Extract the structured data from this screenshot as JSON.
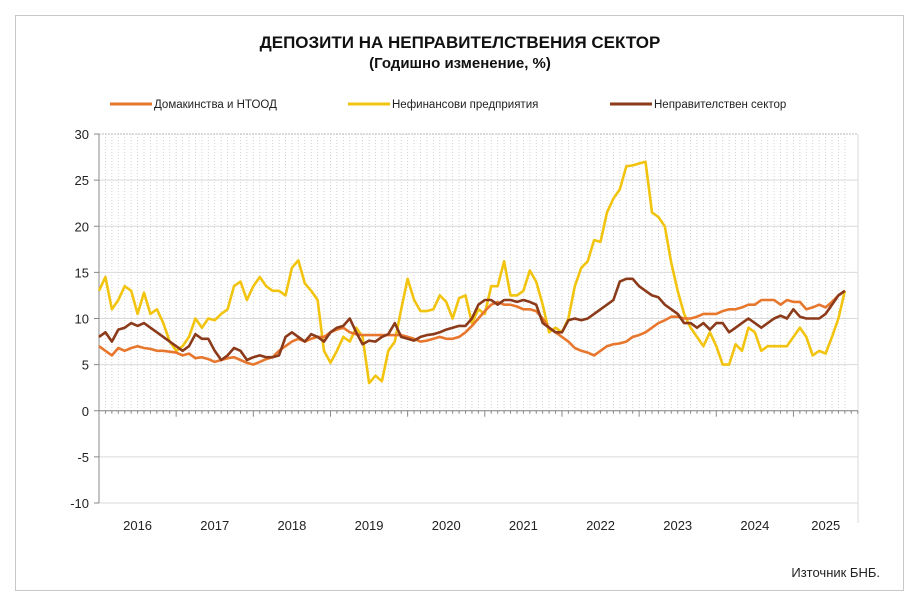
{
  "chart_data": {
    "type": "line",
    "title": "ДЕПОЗИТИ НА НЕПРАВИТЕЛСТВЕНИЯ СЕКТОР",
    "subtitle": "(Годишно изменение, %)",
    "xlabel": "",
    "ylabel": "",
    "ylim": [
      -10,
      30
    ],
    "yticks": [
      "30",
      "25",
      "20",
      "15",
      "10",
      "5",
      "0",
      "-5",
      "-10"
    ],
    "ytick_values": [
      30,
      25,
      20,
      15,
      10,
      5,
      0,
      -5,
      -10
    ],
    "years": [
      "2016",
      "2017",
      "2018",
      "2019",
      "2020",
      "2021",
      "2022",
      "2023",
      "2024",
      "2025"
    ],
    "months_per_year": 12,
    "grid": true,
    "legend_position": "top",
    "source": "Източник БНБ.",
    "series": [
      {
        "name": "Домакинства и НТООД",
        "color": "#e8772e",
        "values": [
          7,
          6.5,
          6,
          6.8,
          6.5,
          6.8,
          7,
          6.8,
          6.7,
          6.5,
          6.5,
          6.4,
          6.3,
          6,
          6.2,
          5.7,
          5.8,
          5.6,
          5.3,
          5.5,
          5.7,
          5.8,
          5.5,
          5.2,
          5,
          5.3,
          5.6,
          5.8,
          6.5,
          7,
          7.5,
          7.8,
          7.5,
          7.8,
          8,
          8,
          8.5,
          8.8,
          9,
          8.5,
          8.3,
          8.2,
          8.2,
          8.2,
          8.2,
          8.2,
          8.2,
          8.2,
          8,
          7.8,
          7.5,
          7.6,
          7.8,
          8,
          7.8,
          7.8,
          8,
          8.5,
          9.2,
          10,
          10.8,
          11.5,
          11.8,
          11.5,
          11.5,
          11.3,
          11,
          11,
          10.8,
          10,
          9,
          8.5,
          8,
          7.5,
          6.8,
          6.5,
          6.3,
          6,
          6.5,
          7,
          7.2,
          7.3,
          7.5,
          8,
          8.2,
          8.5,
          9,
          9.5,
          9.8,
          10.2,
          10.2,
          10,
          10,
          10.2,
          10.5,
          10.5,
          10.5,
          10.8,
          11,
          11,
          11.2,
          11.5,
          11.5,
          12,
          12,
          12,
          11.5,
          12,
          11.8,
          11.8,
          11,
          11.2,
          11.5,
          11.2,
          11.8,
          12.5,
          13
        ]
      },
      {
        "name": "Нефинансови предприятия",
        "color": "#f2c40f",
        "values": [
          13,
          14.5,
          11,
          12,
          13.5,
          13,
          10.5,
          12.8,
          10.5,
          11,
          9.5,
          7.5,
          6.5,
          7,
          8,
          10,
          9,
          10,
          9.8,
          10.5,
          11,
          13.5,
          14,
          12,
          13.5,
          14.5,
          13.5,
          13,
          13,
          12.5,
          15.5,
          16.3,
          13.8,
          13,
          12,
          6.5,
          5.2,
          6.5,
          8,
          7.5,
          9,
          8,
          3,
          3.8,
          3.2,
          6.5,
          7.5,
          11,
          14.3,
          12,
          10.8,
          10.8,
          11,
          12.5,
          11.8,
          10,
          12.2,
          12.5,
          9.5,
          11,
          10.5,
          13.5,
          13.5,
          16.2,
          12.5,
          12.5,
          13,
          15.2,
          14,
          11.5,
          8.5,
          9,
          8.5,
          10,
          13.5,
          15.5,
          16.2,
          18.5,
          18.3,
          21.5,
          23,
          24,
          26.5,
          26.6,
          26.8,
          27,
          21.5,
          21,
          20,
          16,
          13,
          10.5,
          9,
          8,
          7,
          8.5,
          7,
          5,
          5,
          7.2,
          6.5,
          9,
          8.5,
          6.5,
          7,
          7,
          7,
          7,
          8,
          9,
          8,
          6,
          6.5,
          6.2,
          8,
          10,
          13
        ]
      },
      {
        "name": "Неправителствен сектор",
        "color": "#8b3a1a",
        "values": [
          8,
          8.5,
          7.5,
          8.8,
          9,
          9.5,
          9.2,
          9.5,
          9,
          8.5,
          8,
          7.5,
          7,
          6.5,
          7,
          8.3,
          7.8,
          7.8,
          6.5,
          5.5,
          6,
          6.8,
          6.5,
          5.5,
          5.8,
          6,
          5.8,
          5.8,
          6,
          8,
          8.5,
          8,
          7.5,
          8.3,
          8,
          7.5,
          8.5,
          9,
          9.2,
          10,
          8.5,
          7.2,
          7.6,
          7.5,
          8,
          8.3,
          9.5,
          8,
          7.8,
          7.6,
          8,
          8.2,
          8.3,
          8.5,
          8.8,
          9,
          9.2,
          9.2,
          10,
          11.5,
          12,
          12,
          11.5,
          12,
          12,
          11.8,
          12,
          11.8,
          11.5,
          9.5,
          9,
          8.5,
          8.5,
          9.8,
          10,
          9.8,
          10,
          10.5,
          11,
          11.5,
          12,
          14,
          14.3,
          14.3,
          13.5,
          13,
          12.5,
          12.3,
          11.5,
          11,
          10.5,
          9.5,
          9.5,
          9,
          9.5,
          8.8,
          9.5,
          9.5,
          8.5,
          9,
          9.5,
          10,
          9.5,
          9,
          9.5,
          10,
          10.3,
          10,
          11,
          10.2,
          10,
          10,
          10,
          10.5,
          11.5,
          12.5,
          13
        ]
      }
    ]
  }
}
